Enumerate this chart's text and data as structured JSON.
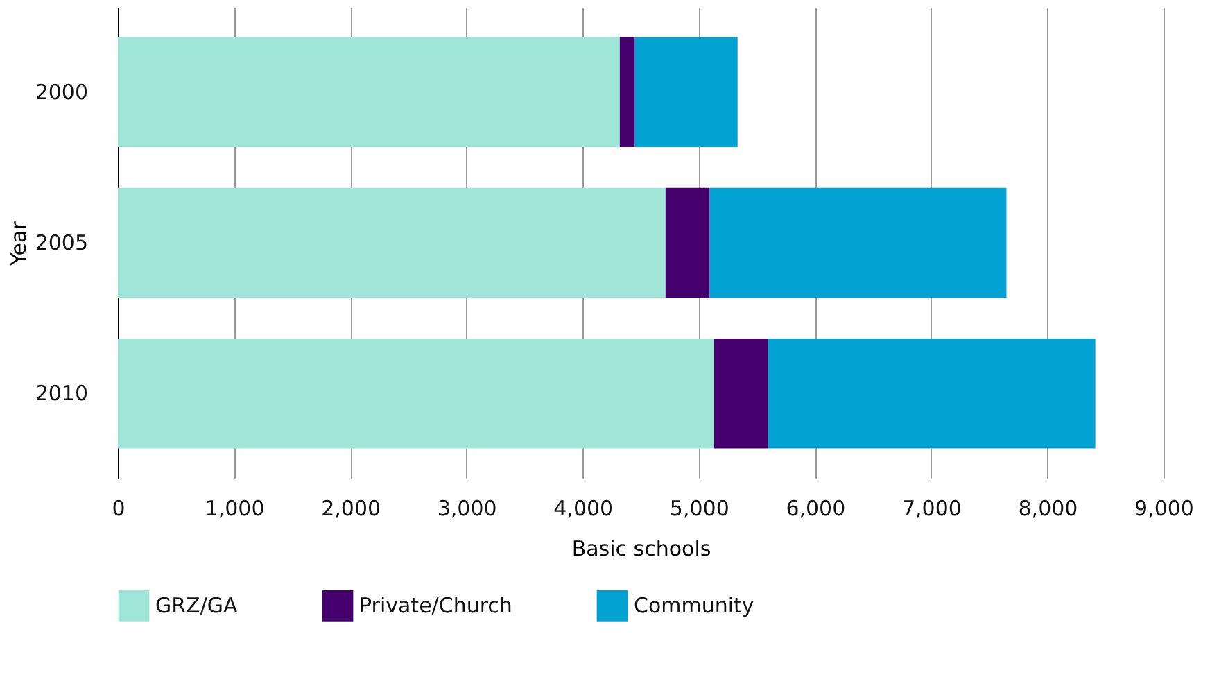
{
  "chart_data": {
    "type": "bar",
    "orientation": "horizontal",
    "stacked": true,
    "xlabel": "Basic schools",
    "ylabel": "Year",
    "categories": [
      "2000",
      "2005",
      "2010"
    ],
    "series": [
      {
        "name": "GRZ/GA",
        "color": "#a0e6d8",
        "values": [
          4320,
          4714,
          5131
        ]
      },
      {
        "name": "Private/Church",
        "color": "#46006e",
        "values": [
          130,
          380,
          466
        ]
      },
      {
        "name": "Community",
        "color": "#02a3d3",
        "values": [
          884,
          2554,
          2816
        ]
      }
    ],
    "xlim": [
      0,
      9000
    ],
    "xticks": [
      {
        "value": 0,
        "label": "0"
      },
      {
        "value": 1000,
        "label": "1,000"
      },
      {
        "value": 2000,
        "label": "2,000"
      },
      {
        "value": 3000,
        "label": "3,000"
      },
      {
        "value": 4000,
        "label": "4,000"
      },
      {
        "value": 5000,
        "label": "5,000"
      },
      {
        "value": 6000,
        "label": "6,000"
      },
      {
        "value": 7000,
        "label": "7,000"
      },
      {
        "value": 8000,
        "label": "8,000"
      },
      {
        "value": 9000,
        "label": "9,000"
      }
    ],
    "grid": "x",
    "legend": "bottom"
  }
}
